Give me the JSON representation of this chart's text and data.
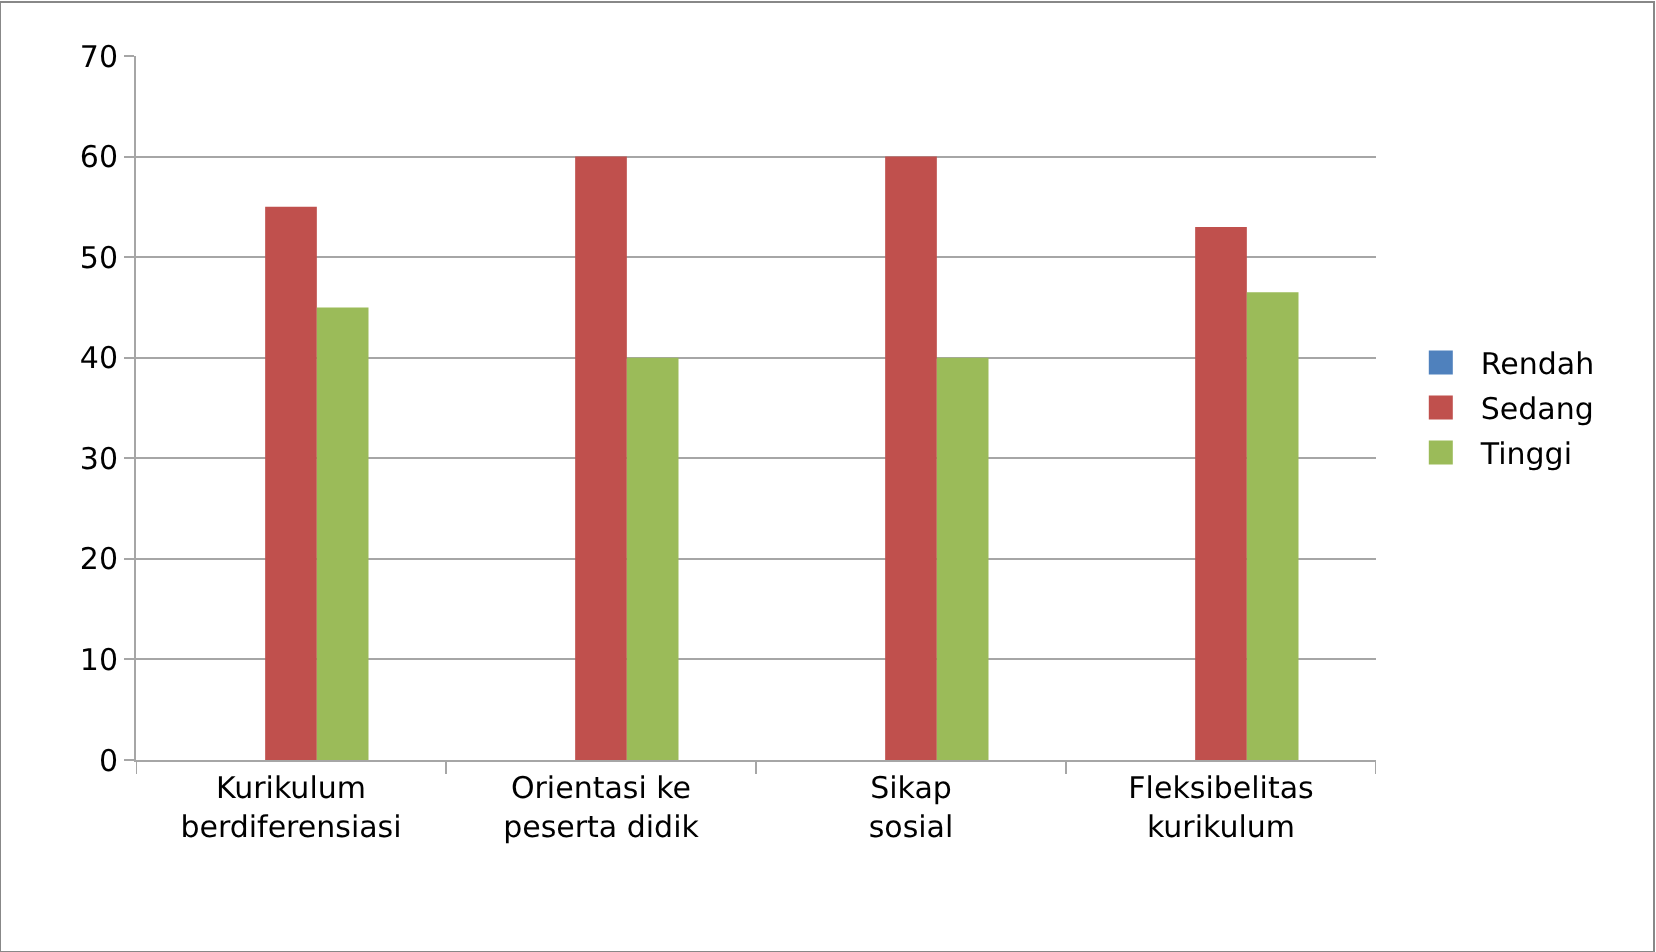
{
  "chart_data": {
    "type": "bar",
    "categories": [
      "Kurikulum berdiferensiasi",
      "Orientasi ke peserta didik",
      "Sikap sosial",
      "Fleksibelitas kurikulum"
    ],
    "series": [
      {
        "name": "Rendah",
        "color": "#4f81bd",
        "values": [
          0,
          0,
          0,
          0
        ]
      },
      {
        "name": "Sedang",
        "color": "#c0504d",
        "values": [
          55,
          60,
          60,
          53
        ]
      },
      {
        "name": "Tinggi",
        "color": "#9bbb59",
        "values": [
          45,
          40,
          40,
          46.5
        ]
      }
    ],
    "ylim": [
      0,
      70
    ],
    "yticks": [
      0,
      10,
      20,
      30,
      40,
      50,
      60,
      70
    ],
    "grid": "y",
    "legend": "right"
  }
}
